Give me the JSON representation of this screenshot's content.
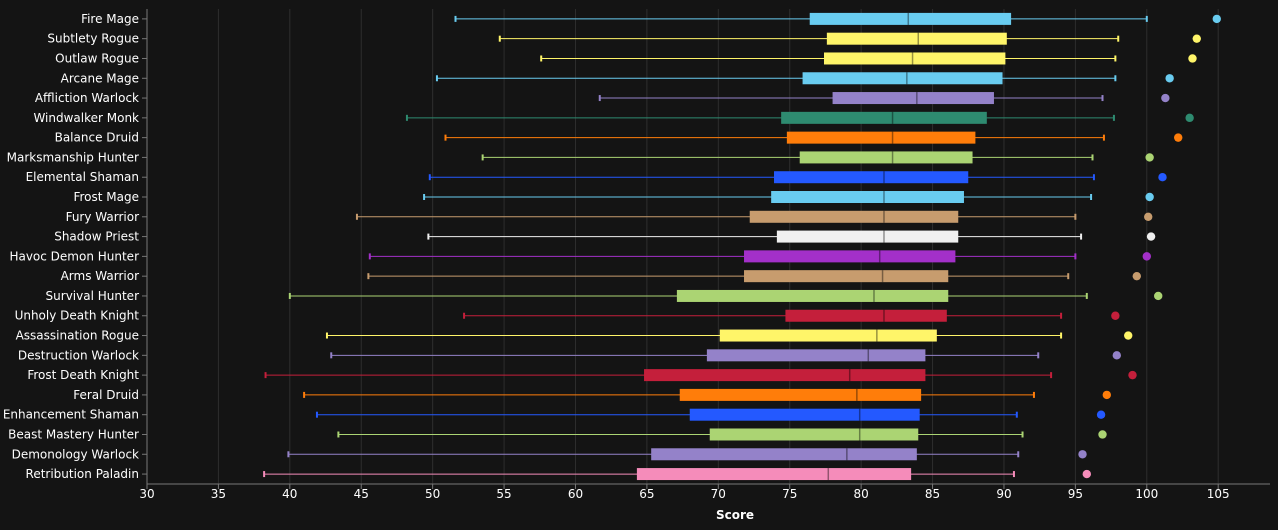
{
  "chart_data": {
    "type": "boxplot",
    "xlabel": "Score",
    "xlim": [
      30,
      106
    ],
    "xticks": [
      30,
      35,
      40,
      45,
      50,
      55,
      60,
      65,
      70,
      75,
      80,
      85,
      90,
      95,
      100,
      105
    ],
    "grid": "vertical",
    "categories": [
      "Fire Mage",
      "Subtlety Rogue",
      "Outlaw Rogue",
      "Arcane Mage",
      "Affliction Warlock",
      "Windwalker Monk",
      "Balance Druid",
      "Marksmanship Hunter",
      "Elemental Shaman",
      "Frost Mage",
      "Fury Warrior",
      "Shadow Priest",
      "Havoc Demon Hunter",
      "Arms Warrior",
      "Survival Hunter",
      "Unholy Death Knight",
      "Assassination Rogue",
      "Destruction Warlock",
      "Frost Death Knight",
      "Feral Druid",
      "Enhancement Shaman",
      "Beast Mastery Hunter",
      "Demonology Warlock",
      "Retribution Paladin"
    ],
    "series": [
      {
        "name": "Fire Mage",
        "color": "#69ccf0",
        "min": 51.6,
        "q1": 76.4,
        "median": 83.3,
        "q3": 90.5,
        "max": 100.0,
        "top": 104.9
      },
      {
        "name": "Subtlety Rogue",
        "color": "#fff569",
        "min": 54.7,
        "q1": 77.6,
        "median": 84.0,
        "q3": 90.2,
        "max": 98.0,
        "top": 103.5
      },
      {
        "name": "Outlaw Rogue",
        "color": "#fff569",
        "min": 57.6,
        "q1": 77.4,
        "median": 83.6,
        "q3": 90.1,
        "max": 97.8,
        "top": 103.2
      },
      {
        "name": "Arcane Mage",
        "color": "#69ccf0",
        "min": 50.3,
        "q1": 75.9,
        "median": 83.2,
        "q3": 89.9,
        "max": 97.8,
        "top": 101.6
      },
      {
        "name": "Affliction Warlock",
        "color": "#9482c9",
        "min": 61.7,
        "q1": 78.0,
        "median": 83.9,
        "q3": 89.3,
        "max": 96.9,
        "top": 101.3
      },
      {
        "name": "Windwalker Monk",
        "color": "#2e8b70",
        "min": 48.2,
        "q1": 74.4,
        "median": 82.2,
        "q3": 88.8,
        "max": 97.7,
        "top": 103.0
      },
      {
        "name": "Balance Druid",
        "color": "#ff7d0a",
        "min": 50.9,
        "q1": 74.8,
        "median": 82.2,
        "q3": 88.0,
        "max": 97.0,
        "top": 102.2
      },
      {
        "name": "Marksmanship Hunter",
        "color": "#abd473",
        "min": 53.5,
        "q1": 75.7,
        "median": 82.2,
        "q3": 87.8,
        "max": 96.2,
        "top": 100.2
      },
      {
        "name": "Elemental Shaman",
        "color": "#2459ff",
        "min": 49.8,
        "q1": 73.9,
        "median": 81.6,
        "q3": 87.5,
        "max": 96.3,
        "top": 101.1
      },
      {
        "name": "Frost Mage",
        "color": "#69ccf0",
        "min": 49.4,
        "q1": 73.7,
        "median": 81.6,
        "q3": 87.2,
        "max": 96.1,
        "top": 100.2
      },
      {
        "name": "Fury Warrior",
        "color": "#c79c6e",
        "min": 44.7,
        "q1": 72.2,
        "median": 81.6,
        "q3": 86.8,
        "max": 95.0,
        "top": 100.1
      },
      {
        "name": "Shadow Priest",
        "color": "#f0f0f0",
        "min": 49.7,
        "q1": 74.1,
        "median": 81.6,
        "q3": 86.8,
        "max": 95.4,
        "top": 100.3
      },
      {
        "name": "Havoc Demon Hunter",
        "color": "#a330c9",
        "min": 45.6,
        "q1": 71.8,
        "median": 81.3,
        "q3": 86.6,
        "max": 95.0,
        "top": 100.0
      },
      {
        "name": "Arms Warrior",
        "color": "#c79c6e",
        "min": 45.5,
        "q1": 71.8,
        "median": 81.5,
        "q3": 86.1,
        "max": 94.5,
        "top": 99.3
      },
      {
        "name": "Survival Hunter",
        "color": "#abd473",
        "min": 40.0,
        "q1": 67.1,
        "median": 80.9,
        "q3": 86.1,
        "max": 95.8,
        "top": 100.8
      },
      {
        "name": "Unholy Death Knight",
        "color": "#c41f3b",
        "min": 52.2,
        "q1": 74.7,
        "median": 81.6,
        "q3": 86.0,
        "max": 94.0,
        "top": 97.8
      },
      {
        "name": "Assassination Rogue",
        "color": "#fff569",
        "min": 42.6,
        "q1": 70.1,
        "median": 81.1,
        "q3": 85.3,
        "max": 94.0,
        "top": 98.7
      },
      {
        "name": "Destruction Warlock",
        "color": "#9482c9",
        "min": 42.9,
        "q1": 69.2,
        "median": 80.5,
        "q3": 84.5,
        "max": 92.4,
        "top": 97.9
      },
      {
        "name": "Frost Death Knight",
        "color": "#c41f3b",
        "min": 38.3,
        "q1": 64.8,
        "median": 79.2,
        "q3": 84.5,
        "max": 93.3,
        "top": 99.0
      },
      {
        "name": "Feral Druid",
        "color": "#ff7d0a",
        "min": 41.0,
        "q1": 67.3,
        "median": 79.7,
        "q3": 84.2,
        "max": 92.1,
        "top": 97.2
      },
      {
        "name": "Enhancement Shaman",
        "color": "#2459ff",
        "min": 41.9,
        "q1": 68.0,
        "median": 79.9,
        "q3": 84.1,
        "max": 90.9,
        "top": 96.8
      },
      {
        "name": "Beast Mastery Hunter",
        "color": "#abd473",
        "min": 43.4,
        "q1": 69.4,
        "median": 79.9,
        "q3": 84.0,
        "max": 91.3,
        "top": 96.9
      },
      {
        "name": "Demonology Warlock",
        "color": "#9482c9",
        "min": 39.9,
        "q1": 65.3,
        "median": 79.0,
        "q3": 83.9,
        "max": 91.0,
        "top": 95.5
      },
      {
        "name": "Retribution Paladin",
        "color": "#f58cba",
        "min": 38.2,
        "q1": 64.3,
        "median": 77.7,
        "q3": 83.5,
        "max": 90.7,
        "top": 95.8
      }
    ]
  }
}
